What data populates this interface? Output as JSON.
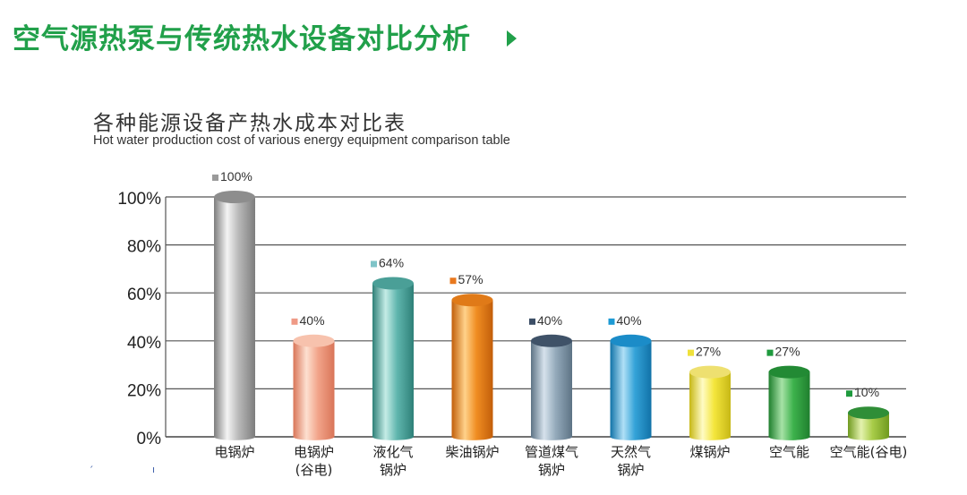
{
  "header": {
    "title": "空气源热泵与传统热水设备对比分析"
  },
  "colors": {
    "accent": "#21a04a"
  },
  "chart_data": {
    "type": "bar",
    "title": "各种能源设备产热水成本对比表",
    "subtitle": "Hot water production cost of various energy equipment comparison table",
    "xlabel": "",
    "ylabel": "",
    "ylim": [
      0,
      100
    ],
    "y_ticks": [
      {
        "value": 0,
        "label": "0%"
      },
      {
        "value": 20,
        "label": "20%"
      },
      {
        "value": 40,
        "label": "40%"
      },
      {
        "value": 60,
        "label": "60%"
      },
      {
        "value": 80,
        "label": "80%"
      },
      {
        "value": 100,
        "label": "100%"
      }
    ],
    "grid": true,
    "series": [
      {
        "values": [
          100,
          40,
          64,
          57,
          40,
          40,
          27,
          27,
          10
        ],
        "data_labels": [
          "100%",
          "40%",
          "64%",
          "57%",
          "40%",
          "40%",
          "27%",
          "27%",
          "10%"
        ]
      }
    ],
    "categories": [
      {
        "lines": [
          "电锅炉"
        ]
      },
      {
        "lines": [
          "电锅炉",
          "(谷电)"
        ]
      },
      {
        "lines": [
          "液化气",
          "锅炉"
        ]
      },
      {
        "lines": [
          "柴油锅炉"
        ]
      },
      {
        "lines": [
          "管道煤气",
          "锅炉"
        ]
      },
      {
        "lines": [
          "天然气",
          "锅炉"
        ]
      },
      {
        "lines": [
          "煤锅炉"
        ]
      },
      {
        "lines": [
          "空气能"
        ]
      },
      {
        "lines": [
          "空气能(谷电)"
        ]
      }
    ],
    "bar_colors": [
      {
        "light": "#f4f4f4",
        "base": "#b8b8b8",
        "dark": "#7d7d7d",
        "top": "#8d8d8d",
        "marker": "#9a9a9a"
      },
      {
        "light": "#fde0d0",
        "base": "#f2a48a",
        "dark": "#d97558",
        "top": "#f7c2ad",
        "marker": "#ef9a86"
      },
      {
        "light": "#c4ece6",
        "base": "#5fb5ad",
        "dark": "#2e8078",
        "top": "#4a9f97",
        "marker": "#7fc4c8"
      },
      {
        "light": "#ffd28a",
        "base": "#f08d22",
        "dark": "#c25e0a",
        "top": "#e07a18",
        "marker": "#e8781e"
      },
      {
        "light": "#d6e2ec",
        "base": "#94aabb",
        "dark": "#5d7385",
        "top": "#3f5268",
        "marker": "#3c4e66"
      },
      {
        "light": "#b0e0f6",
        "base": "#34a3d8",
        "dark": "#1172a8",
        "top": "#1b8cc8",
        "marker": "#1c9ad4"
      },
      {
        "light": "#fffbc4",
        "base": "#f4e63c",
        "dark": "#c7b816",
        "top": "#eee070",
        "marker": "#efe13a"
      },
      {
        "light": "#a6e2a6",
        "base": "#3db24c",
        "dark": "#1f7f2e",
        "top": "#228a34",
        "marker": "#1f9a3e"
      },
      {
        "light": "#e4f2ae",
        "base": "#a8cc48",
        "dark": "#6f9a1f",
        "top": "#2f8e37",
        "marker": "#1f9a3e"
      }
    ]
  },
  "stray_marks": [
    "ˊ",
    "ı"
  ]
}
